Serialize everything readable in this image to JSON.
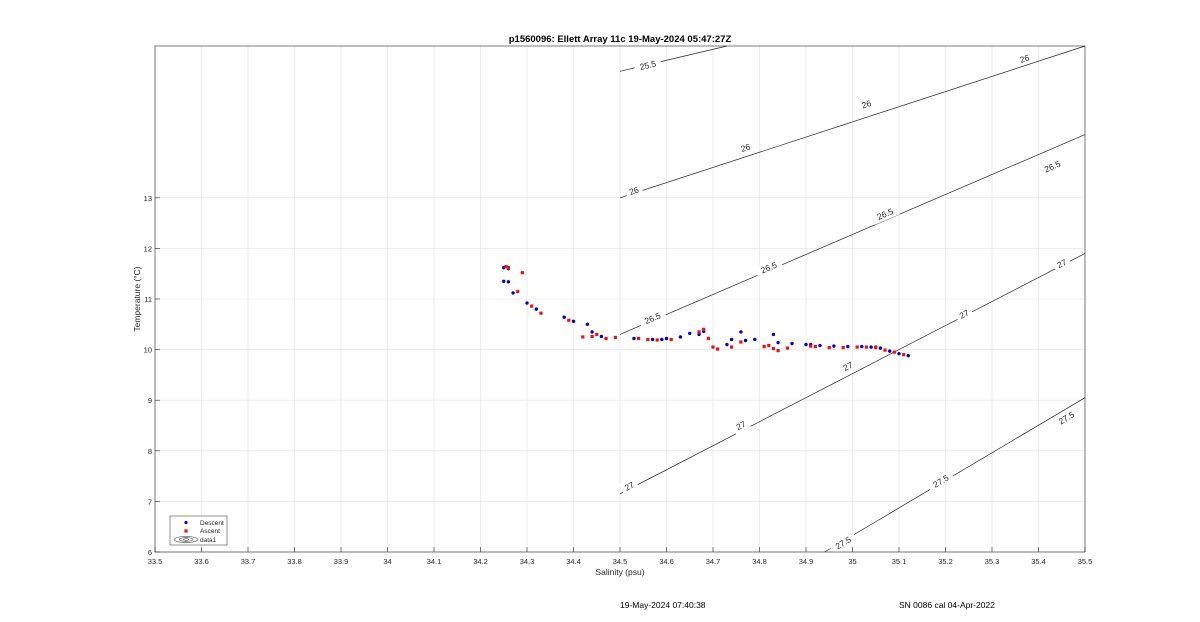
{
  "chart_data": {
    "type": "scatter",
    "title": "p1560096: Ellett Array 11c 19-May-2024 05:47:27Z",
    "xlabel": "Salinity (psu)",
    "ylabel": "Temperature (°C)",
    "xlim": [
      33.5,
      35.5
    ],
    "ylim": [
      6,
      16
    ],
    "x_ticks": [
      "33.5",
      "33.6",
      "33.7",
      "33.8",
      "33.9",
      "34",
      "34.1",
      "34.2",
      "34.3",
      "34.4",
      "34.5",
      "34.6",
      "34.7",
      "34.8",
      "34.9",
      "35",
      "35.1",
      "35.2",
      "35.3",
      "35.4",
      "35.5"
    ],
    "y_ticks": [
      "6",
      "7",
      "8",
      "9",
      "10",
      "11",
      "12",
      "13"
    ],
    "grid": true,
    "legend_position": "bottom-left",
    "legend": [
      {
        "label": "Descent",
        "color": "#0000cc",
        "marker": "dot"
      },
      {
        "label": "Ascent",
        "color": "#ee1111",
        "marker": "dot"
      },
      {
        "label": "data1",
        "color": "#222222",
        "marker": "contour"
      }
    ],
    "series": [
      {
        "name": "Descent",
        "color": "#0000cc",
        "points": [
          [
            34.25,
            11.62
          ],
          [
            34.26,
            11.6
          ],
          [
            34.25,
            11.35
          ],
          [
            34.26,
            11.34
          ],
          [
            34.27,
            11.12
          ],
          [
            34.3,
            10.92
          ],
          [
            34.32,
            10.8
          ],
          [
            34.38,
            10.64
          ],
          [
            34.4,
            10.56
          ],
          [
            34.43,
            10.5
          ],
          [
            34.44,
            10.35
          ],
          [
            34.46,
            10.26
          ],
          [
            34.53,
            10.22
          ],
          [
            34.57,
            10.2
          ],
          [
            34.59,
            10.2
          ],
          [
            34.6,
            10.22
          ],
          [
            34.63,
            10.25
          ],
          [
            34.65,
            10.32
          ],
          [
            34.67,
            10.3
          ],
          [
            34.68,
            10.36
          ],
          [
            34.73,
            10.1
          ],
          [
            34.74,
            10.2
          ],
          [
            34.76,
            10.35
          ],
          [
            34.77,
            10.18
          ],
          [
            34.79,
            10.2
          ],
          [
            34.83,
            10.3
          ],
          [
            34.84,
            10.14
          ],
          [
            34.87,
            10.12
          ],
          [
            34.9,
            10.1
          ],
          [
            34.91,
            10.1
          ],
          [
            34.93,
            10.08
          ],
          [
            34.96,
            10.07
          ],
          [
            34.99,
            10.06
          ],
          [
            35.02,
            10.06
          ],
          [
            35.04,
            10.05
          ],
          [
            35.05,
            10.05
          ],
          [
            35.06,
            10.03
          ],
          [
            35.08,
            9.97
          ],
          [
            35.1,
            9.92
          ],
          [
            35.12,
            9.88
          ]
        ]
      },
      {
        "name": "Ascent",
        "color": "#ee1111",
        "points": [
          [
            34.255,
            11.64
          ],
          [
            34.26,
            11.62
          ],
          [
            34.29,
            11.52
          ],
          [
            34.28,
            11.15
          ],
          [
            34.31,
            10.86
          ],
          [
            34.33,
            10.72
          ],
          [
            34.39,
            10.58
          ],
          [
            34.42,
            10.25
          ],
          [
            34.44,
            10.26
          ],
          [
            34.45,
            10.3
          ],
          [
            34.47,
            10.22
          ],
          [
            34.49,
            10.24
          ],
          [
            34.54,
            10.22
          ],
          [
            34.56,
            10.2
          ],
          [
            34.58,
            10.19
          ],
          [
            34.61,
            10.2
          ],
          [
            34.67,
            10.35
          ],
          [
            34.68,
            10.4
          ],
          [
            34.69,
            10.22
          ],
          [
            34.7,
            10.05
          ],
          [
            34.71,
            10.01
          ],
          [
            34.74,
            10.05
          ],
          [
            34.76,
            10.15
          ],
          [
            34.81,
            10.06
          ],
          [
            34.82,
            10.08
          ],
          [
            34.83,
            10.02
          ],
          [
            34.84,
            9.98
          ],
          [
            34.86,
            10.03
          ],
          [
            34.91,
            10.07
          ],
          [
            34.92,
            10.06
          ],
          [
            34.95,
            10.04
          ],
          [
            34.98,
            10.04
          ],
          [
            35.01,
            10.05
          ],
          [
            35.03,
            10.05
          ],
          [
            35.05,
            10.04
          ],
          [
            35.07,
            9.99
          ],
          [
            35.09,
            9.95
          ],
          [
            35.11,
            9.9
          ]
        ]
      }
    ],
    "contours": [
      {
        "level": "25.5",
        "start": [
          34.5,
          15.5
        ],
        "end": [
          34.73,
          16.0
        ],
        "labels": [
          [
            34.56,
            15.62
          ]
        ]
      },
      {
        "level": "26",
        "start": [
          34.5,
          13.0
        ],
        "end": [
          35.5,
          16.0
        ],
        "labels": [
          [
            34.53,
            13.14
          ],
          [
            34.77,
            13.99
          ],
          [
            35.03,
            14.85
          ],
          [
            35.37,
            15.75
          ]
        ]
      },
      {
        "level": "26.5",
        "start": [
          34.5,
          10.3
        ],
        "end": [
          35.5,
          14.25
        ],
        "labels": [
          [
            34.57,
            10.62
          ],
          [
            34.82,
            11.62
          ],
          [
            35.07,
            12.68
          ],
          [
            35.43,
            13.62
          ]
        ]
      },
      {
        "level": "27",
        "start": [
          34.5,
          7.15
        ],
        "end": [
          35.5,
          11.9
        ],
        "labels": [
          [
            34.52,
            7.3
          ],
          [
            34.76,
            8.5
          ],
          [
            34.99,
            9.67
          ],
          [
            35.24,
            10.7
          ],
          [
            35.45,
            11.7
          ]
        ]
      },
      {
        "level": "27.5",
        "start": [
          34.94,
          6.0
        ],
        "end": [
          35.5,
          9.05
        ],
        "labels": [
          [
            34.98,
            6.18
          ],
          [
            35.19,
            7.4
          ],
          [
            35.46,
            8.65
          ]
        ]
      }
    ]
  },
  "footer": {
    "timestamp": "19-May-2024 07:40:38",
    "serial": "SN 0086 cal 04-Apr-2022"
  }
}
